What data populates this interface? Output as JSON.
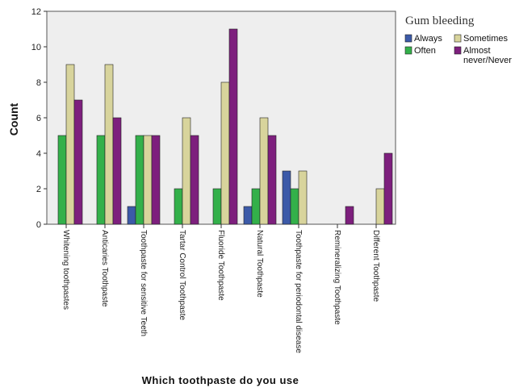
{
  "chart_data": {
    "type": "bar",
    "title": "",
    "xlabel": "Which toothpaste do you use",
    "ylabel": "Count",
    "ylim": [
      0,
      12
    ],
    "yticks": [
      0,
      2,
      4,
      6,
      8,
      10,
      12
    ],
    "grid": false,
    "legend_position": "right",
    "legend_title": "Gum bleeding",
    "categories": [
      "Whitening toothpastes",
      "Anticaries Toothpaste",
      "Toothpaste for sensitive Teeth",
      "Tartar Control Toothpaste",
      "Fluoride Toothpaste",
      "Natural Toothpaste",
      "Toothpaste for periodontal disease",
      "Remineralizing Toothpaste",
      "Different Toothpaste"
    ],
    "series": [
      {
        "name": "Always",
        "color": "#3c5aa8",
        "values": [
          0,
          0,
          1,
          0,
          0,
          1,
          3,
          0,
          0
        ]
      },
      {
        "name": "Often",
        "color": "#33b04a",
        "values": [
          5,
          5,
          5,
          2,
          2,
          2,
          2,
          0,
          0
        ]
      },
      {
        "name": "Sometimes",
        "color": "#d8d49c",
        "values": [
          9,
          9,
          5,
          6,
          8,
          6,
          3,
          0,
          2
        ]
      },
      {
        "name": "Almost never/Never",
        "color": "#7d1f7d",
        "values": [
          7,
          6,
          5,
          5,
          11,
          5,
          0,
          1,
          4
        ]
      }
    ],
    "plot_background": "#eeeeee"
  }
}
